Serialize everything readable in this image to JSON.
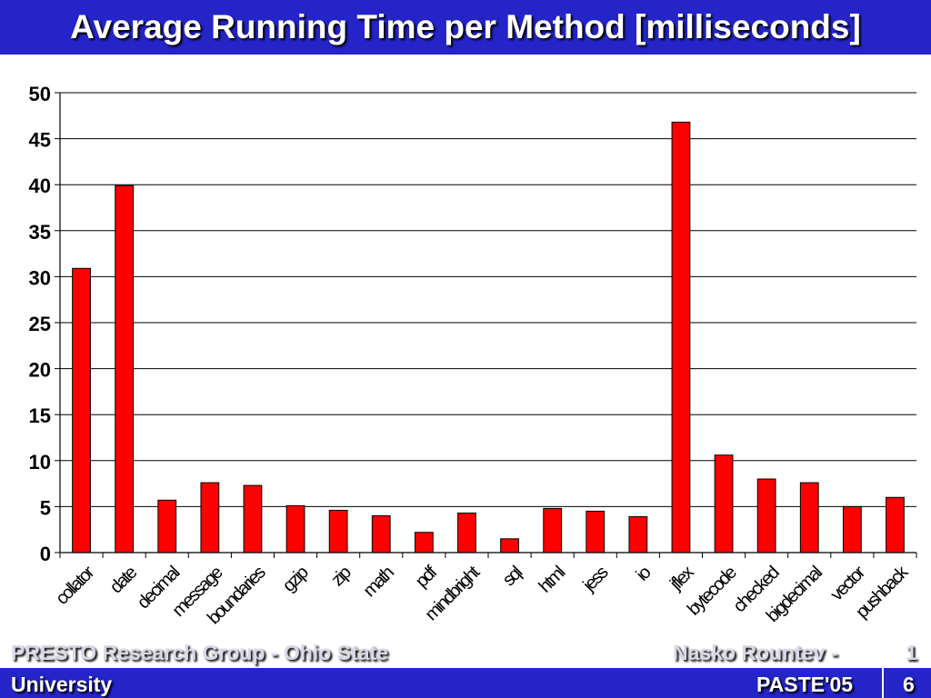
{
  "slide": {
    "title": "Average Running Time per Method [milliseconds]"
  },
  "footer": {
    "org_line1": "PRESTO Research Group - Ohio State",
    "org_line2": "University",
    "author": "Nasko Rountev -",
    "page_part1": "1",
    "conference": "PASTE'05",
    "page_part2": "6"
  },
  "colors": {
    "bar_fill": "#ff0000",
    "header_footer_bg": "#2424c8"
  },
  "chart_data": {
    "type": "bar",
    "categories": [
      "collator",
      "date",
      "decimal",
      "message",
      "boundaries",
      "gzip",
      "zip",
      "math",
      "pdf",
      "mindbright",
      "sql",
      "html",
      "jess",
      "io",
      "jflex",
      "bytecode",
      "checked",
      "bigdecimal",
      "vector",
      "pushback"
    ],
    "values": [
      30.9,
      39.9,
      5.7,
      7.6,
      7.3,
      5.1,
      4.6,
      4.0,
      2.2,
      4.3,
      1.5,
      4.8,
      4.5,
      3.9,
      46.8,
      10.6,
      8.0,
      7.6,
      5.0,
      6.0
    ],
    "title": "",
    "xlabel": "",
    "ylabel": "",
    "ylim": [
      0,
      50
    ],
    "yticks": [
      "0",
      "5",
      "10",
      "15",
      "20",
      "25",
      "30",
      "35",
      "40",
      "45",
      "50"
    ],
    "grid": true,
    "legend": "none"
  }
}
